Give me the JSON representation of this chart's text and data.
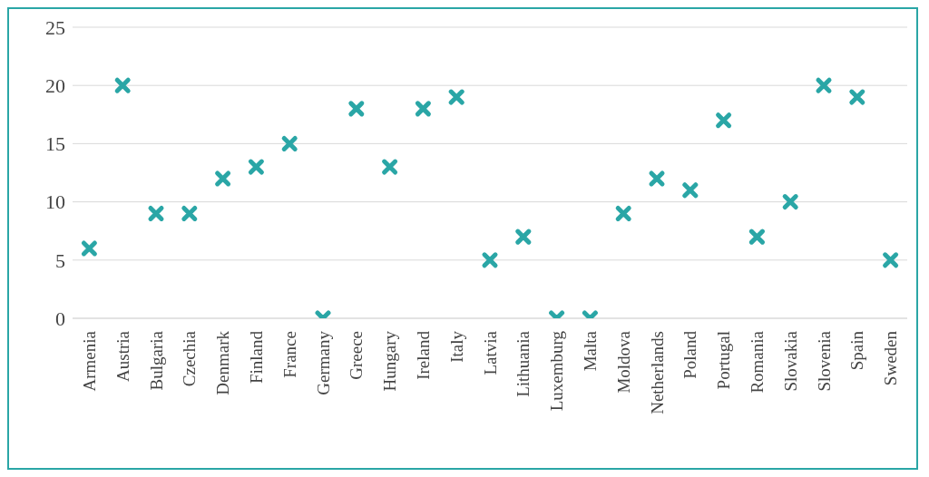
{
  "chart_data": {
    "type": "scatter",
    "categories": [
      "Armenia",
      "Austria",
      "Bulgaria",
      "Czechia",
      "Denmark",
      "Finland",
      "France",
      "Germany",
      "Greece",
      "Hungary",
      "Ireland",
      "Italy",
      "Latvia",
      "Lithuania",
      "Luxemburg",
      "Malta",
      "Moldova",
      "Netherlands",
      "Poland",
      "Portugal",
      "Romania",
      "Slovakia",
      "Slovenia",
      "Spain",
      "Sweden"
    ],
    "values": [
      6,
      20,
      9,
      9,
      12,
      13,
      15,
      0,
      18,
      13,
      18,
      19,
      5,
      7,
      0,
      0,
      9,
      12,
      11,
      17,
      7,
      10,
      20,
      19,
      5
    ],
    "color": "#2aa6a6",
    "marker": "cross",
    "grid": "y",
    "legend": false,
    "ylim": [
      0,
      25
    ],
    "yticks": [
      0,
      5,
      10,
      15,
      20,
      25
    ]
  }
}
